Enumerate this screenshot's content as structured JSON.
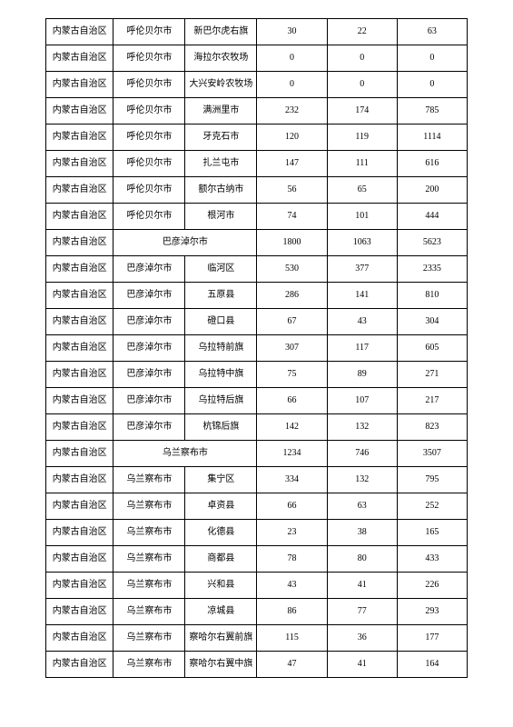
{
  "table": {
    "border_color": "#000000",
    "background_color": "#ffffff",
    "text_color": "#000000",
    "font_size": 10,
    "rows": [
      {
        "region": "内蒙古自治区",
        "city": "呼伦贝尔市",
        "district": "新巴尔虎右旗",
        "v1": "30",
        "v2": "22",
        "v3": "63"
      },
      {
        "region": "内蒙古自治区",
        "city": "呼伦贝尔市",
        "district": "海拉尔农牧场",
        "v1": "0",
        "v2": "0",
        "v3": "0"
      },
      {
        "region": "内蒙古自治区",
        "city": "呼伦贝尔市",
        "district": "大兴安岭农牧场",
        "v1": "0",
        "v2": "0",
        "v3": "0"
      },
      {
        "region": "内蒙古自治区",
        "city": "呼伦贝尔市",
        "district": "满洲里市",
        "v1": "232",
        "v2": "174",
        "v3": "785"
      },
      {
        "region": "内蒙古自治区",
        "city": "呼伦贝尔市",
        "district": "牙克石市",
        "v1": "120",
        "v2": "119",
        "v3": "1114"
      },
      {
        "region": "内蒙古自治区",
        "city": "呼伦贝尔市",
        "district": "扎兰屯市",
        "v1": "147",
        "v2": "111",
        "v3": "616"
      },
      {
        "region": "内蒙古自治区",
        "city": "呼伦贝尔市",
        "district": "额尔古纳市",
        "v1": "56",
        "v2": "65",
        "v3": "200"
      },
      {
        "region": "内蒙古自治区",
        "city": "呼伦贝尔市",
        "district": "根河市",
        "v1": "74",
        "v2": "101",
        "v3": "444"
      },
      {
        "region": "内蒙古自治区",
        "city_merged": "巴彦淖尔市",
        "v1": "1800",
        "v2": "1063",
        "v3": "5623"
      },
      {
        "region": "内蒙古自治区",
        "city": "巴彦淖尔市",
        "district": "临河区",
        "v1": "530",
        "v2": "377",
        "v3": "2335"
      },
      {
        "region": "内蒙古自治区",
        "city": "巴彦淖尔市",
        "district": "五原县",
        "v1": "286",
        "v2": "141",
        "v3": "810"
      },
      {
        "region": "内蒙古自治区",
        "city": "巴彦淖尔市",
        "district": "磴口县",
        "v1": "67",
        "v2": "43",
        "v3": "304"
      },
      {
        "region": "内蒙古自治区",
        "city": "巴彦淖尔市",
        "district": "乌拉特前旗",
        "v1": "307",
        "v2": "117",
        "v3": "605"
      },
      {
        "region": "内蒙古自治区",
        "city": "巴彦淖尔市",
        "district": "乌拉特中旗",
        "v1": "75",
        "v2": "89",
        "v3": "271"
      },
      {
        "region": "内蒙古自治区",
        "city": "巴彦淖尔市",
        "district": "乌拉特后旗",
        "v1": "66",
        "v2": "107",
        "v3": "217"
      },
      {
        "region": "内蒙古自治区",
        "city": "巴彦淖尔市",
        "district": "杭锦后旗",
        "v1": "142",
        "v2": "132",
        "v3": "823"
      },
      {
        "region": "内蒙古自治区",
        "city_merged": "乌兰察布市",
        "v1": "1234",
        "v2": "746",
        "v3": "3507"
      },
      {
        "region": "内蒙古自治区",
        "city": "乌兰察布市",
        "district": "集宁区",
        "v1": "334",
        "v2": "132",
        "v3": "795"
      },
      {
        "region": "内蒙古自治区",
        "city": "乌兰察布市",
        "district": "卓资县",
        "v1": "66",
        "v2": "63",
        "v3": "252"
      },
      {
        "region": "内蒙古自治区",
        "city": "乌兰察布市",
        "district": "化德县",
        "v1": "23",
        "v2": "38",
        "v3": "165"
      },
      {
        "region": "内蒙古自治区",
        "city": "乌兰察布市",
        "district": "商都县",
        "v1": "78",
        "v2": "80",
        "v3": "433"
      },
      {
        "region": "内蒙古自治区",
        "city": "乌兰察布市",
        "district": "兴和县",
        "v1": "43",
        "v2": "41",
        "v3": "226"
      },
      {
        "region": "内蒙古自治区",
        "city": "乌兰察布市",
        "district": "凉城县",
        "v1": "86",
        "v2": "77",
        "v3": "293"
      },
      {
        "region": "内蒙古自治区",
        "city": "乌兰察布市",
        "district": "察哈尔右翼前旗",
        "v1": "115",
        "v2": "36",
        "v3": "177"
      },
      {
        "region": "内蒙古自治区",
        "city": "乌兰察布市",
        "district": "察哈尔右翼中旗",
        "v1": "47",
        "v2": "41",
        "v3": "164"
      }
    ]
  }
}
